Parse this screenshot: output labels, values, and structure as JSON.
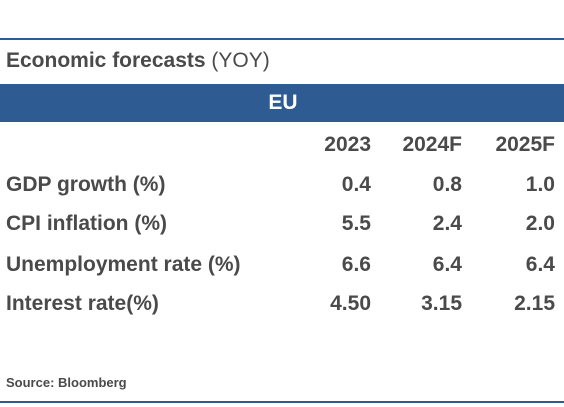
{
  "table": {
    "title_bold": "Economic forecasts",
    "title_suffix": "(YOY)",
    "region": "EU",
    "columns": [
      "2023",
      "2024F",
      "2025F"
    ],
    "rows": [
      {
        "label": "GDP growth (%)",
        "values": [
          "0.4",
          "0.8",
          "1.0"
        ]
      },
      {
        "label": "CPI inflation (%)",
        "values": [
          "5.5",
          "2.4",
          "2.0"
        ]
      },
      {
        "label": "Unemployment rate (%)",
        "values": [
          "6.6",
          "6.4",
          "6.4"
        ]
      },
      {
        "label": "Interest rate(%)",
        "values": [
          "4.50",
          "3.15",
          "2.15"
        ]
      }
    ],
    "source": "Source: Bloomberg"
  },
  "colors": {
    "accent": "#2e5b92",
    "text": "#4a4a4a"
  }
}
